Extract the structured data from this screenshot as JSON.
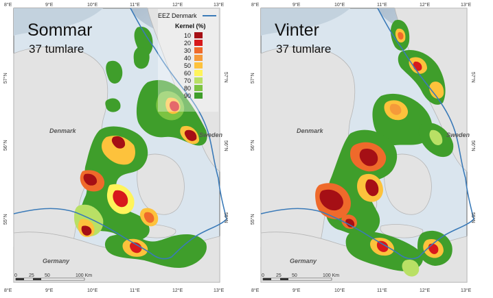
{
  "panels": [
    {
      "title": "Sommar",
      "subtitle": "37 tumlare"
    },
    {
      "title": "Vinter",
      "subtitle": "37 tumlare"
    }
  ],
  "legend": {
    "eez_label": "EEZ Denmark",
    "kernel_title": "Kernel (%)",
    "levels": [
      {
        "label": "10",
        "color": "#a50f15"
      },
      {
        "label": "20",
        "color": "#d7191c"
      },
      {
        "label": "30",
        "color": "#ef6a2b"
      },
      {
        "label": "40",
        "color": "#f59a3a"
      },
      {
        "label": "50",
        "color": "#fdc23c"
      },
      {
        "label": "60",
        "color": "#fff45a"
      },
      {
        "label": "70",
        "color": "#b9e065"
      },
      {
        "label": "80",
        "color": "#7cc342"
      },
      {
        "label": "90",
        "color": "#3f9e2b"
      }
    ]
  },
  "labels": {
    "denmark": "Denmark",
    "sweden": "Sweden",
    "germany": "Germany"
  },
  "axes": {
    "lon_ticks": [
      "8°E",
      "9°E",
      "10°E",
      "11°E",
      "12°E",
      "13°E"
    ],
    "lat_ticks": [
      "57°N",
      "56°N",
      "55°N"
    ]
  },
  "scalebar": {
    "labels": [
      "0",
      "25",
      "50",
      "100 Km"
    ]
  },
  "colors": {
    "sea": "#d9e4ec",
    "land": "#e2e2e2",
    "coast": "#b8b8b8",
    "eez": "#3a7ab8"
  }
}
